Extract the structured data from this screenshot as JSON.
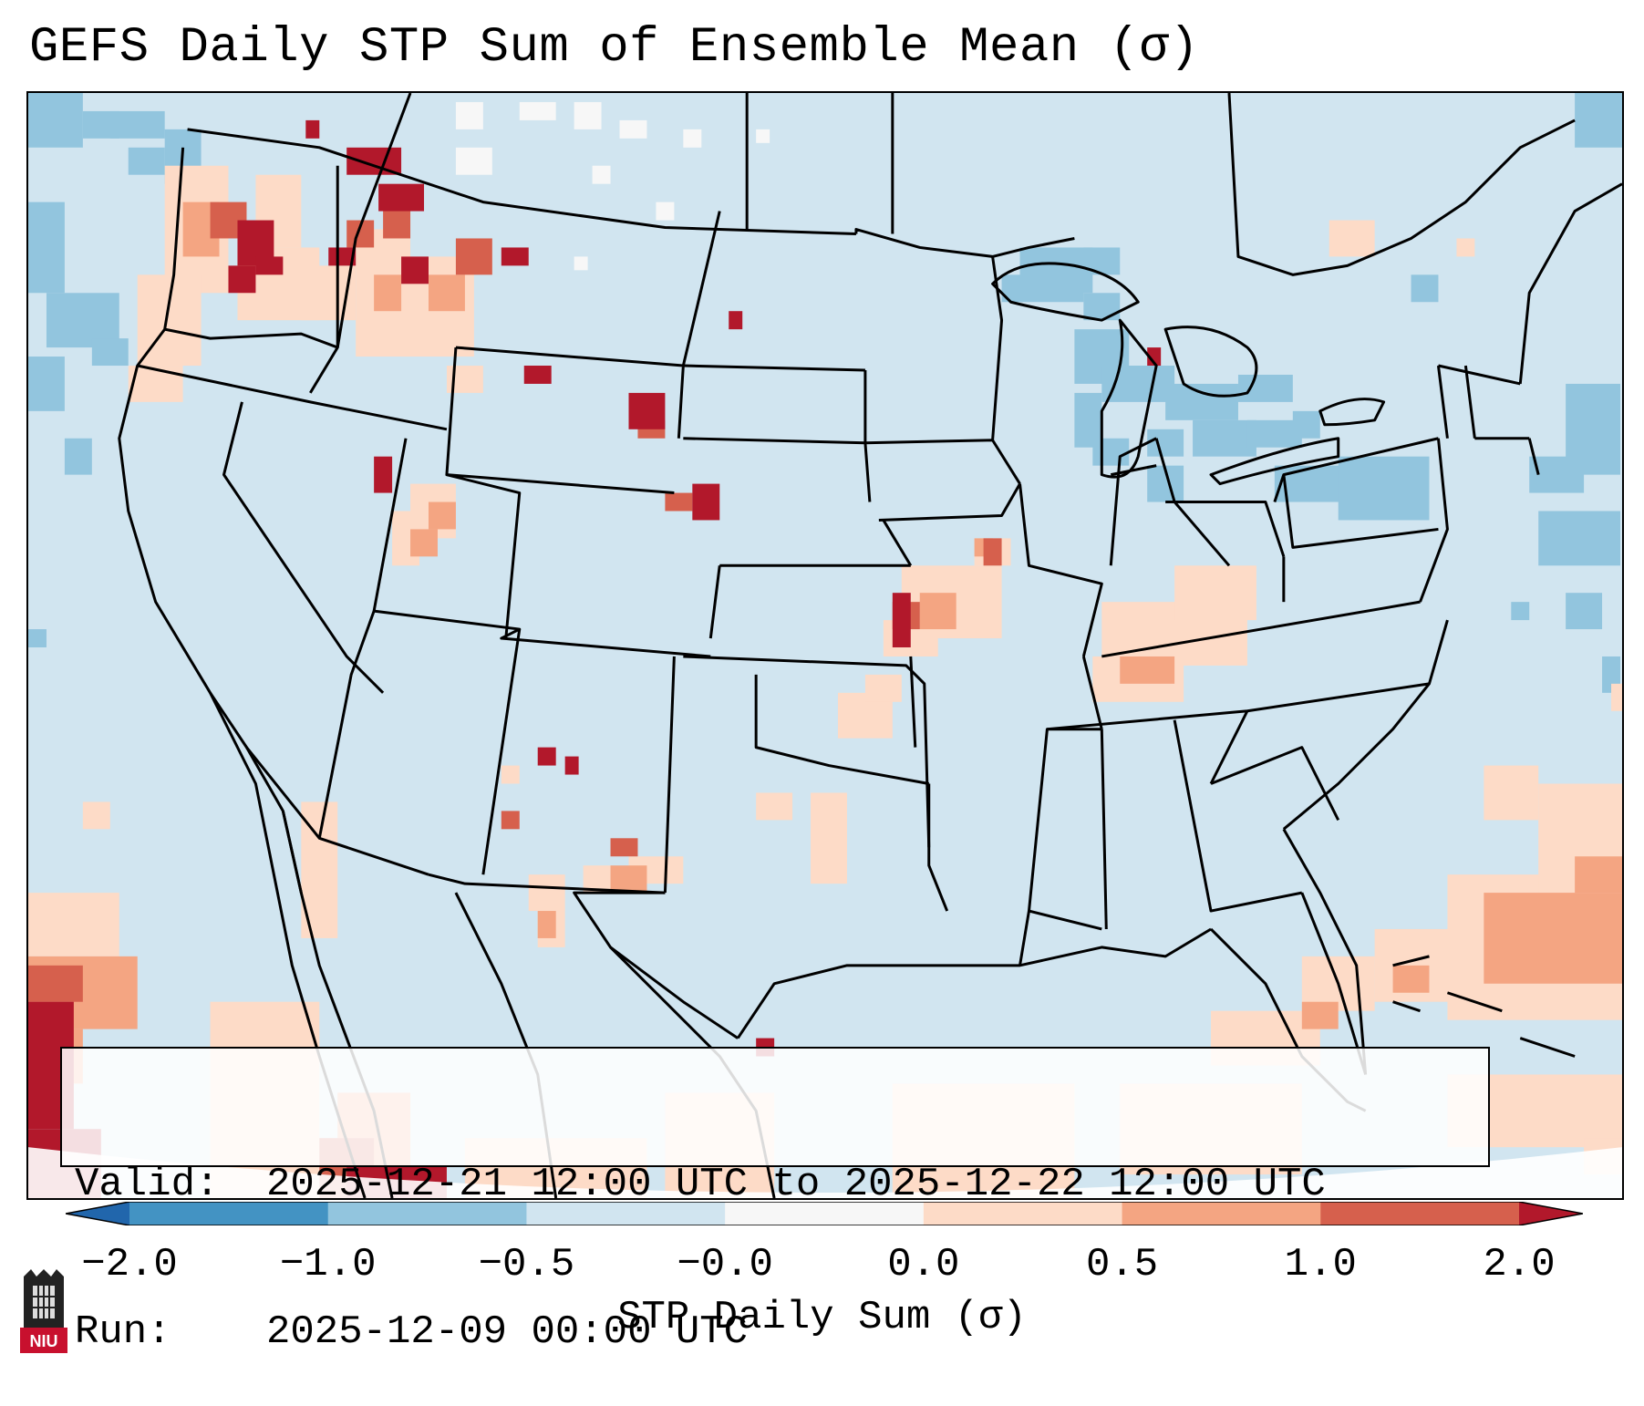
{
  "title": "GEFS Daily STP Sum of Ensemble Mean (σ)",
  "info": {
    "valid_label": "Valid:",
    "valid_value": "2025-12-21 12:00 UTC to 2025-12-22 12:00 UTC",
    "run_label": "Run:",
    "run_value": "2025-12-09 00:00 UTC"
  },
  "colorbar": {
    "label": "STP Daily Sum (σ)",
    "ticks": [
      "−2.0",
      "−1.0",
      "−0.5",
      "−0.0",
      "0.0",
      "0.5",
      "1.0",
      "2.0"
    ],
    "bins": [
      {
        "range": "-2.0 to -1.0",
        "color": "#4393c3"
      },
      {
        "range": "-1.0 to -0.5",
        "color": "#92c5de"
      },
      {
        "range": "-0.5 to -0.0",
        "color": "#d1e5f0"
      },
      {
        "range": "-0.0 to 0.0",
        "color": "#f7f7f7"
      },
      {
        "range": "0.0 to 0.5",
        "color": "#fddbc7"
      },
      {
        "range": "0.5 to 1.0",
        "color": "#f4a582"
      },
      {
        "range": "1.0 to 2.0",
        "color": "#d6604d"
      }
    ],
    "under_color": "#2166ac",
    "over_color": "#b2182b"
  },
  "logo": {
    "text": "NIU",
    "color": "#c8102e"
  }
}
